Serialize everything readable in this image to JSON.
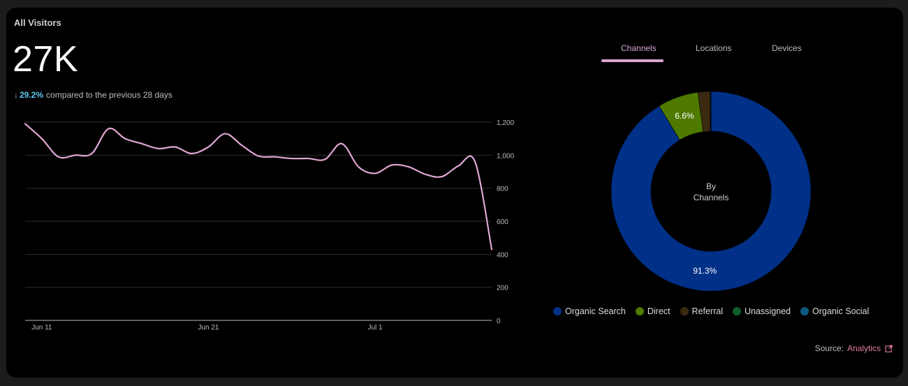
{
  "card": {
    "title": "All Visitors",
    "total": "27K",
    "change_percent": "29.2%",
    "change_direction": "down",
    "change_text": "compared to the previous 28 days"
  },
  "tabs": [
    {
      "label": "Channels",
      "active": true
    },
    {
      "label": "Locations",
      "active": false
    },
    {
      "label": "Devices",
      "active": false
    }
  ],
  "legend": [
    {
      "label": "Organic Search",
      "color": "#003087"
    },
    {
      "label": "Direct",
      "color": "#4e7a00"
    },
    {
      "label": "Referral",
      "color": "#3b2a10"
    },
    {
      "label": "Unassigned",
      "color": "#0d5e2b"
    },
    {
      "label": "Organic Social",
      "color": "#0a5a80"
    }
  ],
  "source": {
    "label": "Source:",
    "link": "Analytics",
    "icon": "external-link-icon"
  },
  "colors": {
    "line": "#e0a6d4",
    "accent": "#5ec8f0"
  },
  "chart_data": [
    {
      "type": "line",
      "x": [
        "Jun 10",
        "Jun 11",
        "Jun 12",
        "Jun 13",
        "Jun 14",
        "Jun 15",
        "Jun 16",
        "Jun 17",
        "Jun 18",
        "Jun 19",
        "Jun 20",
        "Jun 21",
        "Jun 22",
        "Jun 23",
        "Jun 24",
        "Jun 25",
        "Jun 26",
        "Jun 27",
        "Jun 28",
        "Jun 29",
        "Jun 30",
        "Jul 1",
        "Jul 2",
        "Jul 3",
        "Jul 4",
        "Jul 5",
        "Jul 6",
        "Jul 7",
        "Jul 8"
      ],
      "xticks": [
        "Jun 11",
        "Jun 21",
        "Jul 1"
      ],
      "series": [
        {
          "values": [
            1190,
            1100,
            990,
            1000,
            1010,
            1160,
            1100,
            1070,
            1040,
            1050,
            1010,
            1050,
            1130,
            1060,
            995,
            990,
            980,
            980,
            975,
            1070,
            930,
            890,
            940,
            930,
            885,
            870,
            935,
            960,
            430
          ]
        }
      ],
      "yticks": [
        0,
        200,
        400,
        600,
        800,
        1000,
        1200
      ],
      "ytick_labels": [
        "0",
        "200",
        "400",
        "600",
        "800",
        "1,000",
        "1,200"
      ],
      "ylim": [
        0,
        1200
      ],
      "grid": true,
      "title": "",
      "xlabel": "",
      "ylabel": ""
    },
    {
      "type": "pie",
      "donut": true,
      "center_label": "By Channels",
      "labels": [
        "Organic Search",
        "Direct",
        "Referral",
        "Unassigned",
        "Organic Social"
      ],
      "values": [
        91.3,
        6.6,
        1.9,
        0.1,
        0.1
      ],
      "slice_labels": [
        "91.3%",
        "6.6%",
        "",
        "",
        ""
      ]
    }
  ]
}
